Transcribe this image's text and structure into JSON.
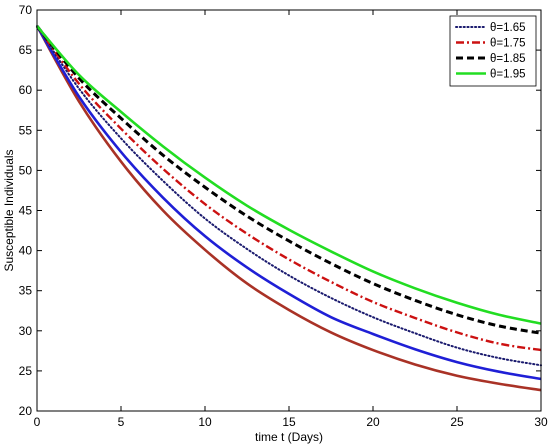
{
  "chart_data": {
    "type": "line",
    "title": "",
    "xlabel": "time t (Days)",
    "ylabel": "Susceptible Individuals",
    "xlim": [
      0,
      30
    ],
    "ylim": [
      20,
      70
    ],
    "xticks": [
      0,
      5,
      10,
      15,
      20,
      25,
      30
    ],
    "yticks": [
      20,
      25,
      30,
      35,
      40,
      45,
      50,
      55,
      60,
      65,
      70
    ],
    "grid": false,
    "legend_position": "top-right",
    "series": [
      {
        "name": "",
        "color": "#a93226",
        "style": "solid",
        "x": [
          0,
          2.5,
          5,
          7.5,
          10,
          12.5,
          15,
          17.5,
          20,
          22.5,
          25,
          27.5,
          30
        ],
        "y": [
          68,
          58.6,
          51.1,
          45.0,
          40.1,
          35.9,
          32.6,
          29.8,
          27.6,
          25.8,
          24.4,
          23.4,
          22.6
        ]
      },
      {
        "name": "",
        "color": "#1f1fd6",
        "style": "solid",
        "x": [
          0,
          2.5,
          5,
          7.5,
          10,
          12.5,
          15,
          17.5,
          20,
          22.5,
          25,
          27.5,
          30
        ],
        "y": [
          68,
          59.2,
          52.3,
          46.6,
          41.8,
          37.9,
          34.6,
          31.7,
          29.6,
          27.7,
          26.1,
          24.9,
          24.0
        ]
      },
      {
        "name": "θ=1.65",
        "color": "#1a1a6e",
        "style": "dotted",
        "x": [
          0,
          2.5,
          5,
          7.5,
          10,
          12.5,
          15,
          17.5,
          20,
          22.5,
          25,
          27.5,
          30
        ],
        "y": [
          68,
          60.2,
          54.0,
          48.7,
          44.0,
          40.2,
          36.9,
          34.1,
          31.7,
          29.7,
          27.9,
          26.6,
          25.7
        ]
      },
      {
        "name": "θ=1.75",
        "color": "#cc1111",
        "style": "dashdot",
        "x": [
          0,
          2.5,
          5,
          7.5,
          10,
          12.5,
          15,
          17.5,
          20,
          22.5,
          25,
          27.5,
          30
        ],
        "y": [
          68,
          60.8,
          55.2,
          50.2,
          45.8,
          42.1,
          38.9,
          36.1,
          33.6,
          31.6,
          29.8,
          28.4,
          27.6
        ]
      },
      {
        "name": "θ=1.85",
        "color": "#000000",
        "style": "dashed",
        "x": [
          0,
          2.5,
          5,
          7.5,
          10,
          12.5,
          15,
          17.5,
          20,
          22.5,
          25,
          27.5,
          30
        ],
        "y": [
          68,
          61.5,
          56.5,
          51.9,
          47.9,
          44.3,
          41.2,
          38.4,
          35.9,
          33.8,
          32.0,
          30.6,
          29.7
        ]
      },
      {
        "name": "θ=1.95",
        "color": "#22dd22",
        "style": "solid",
        "x": [
          0,
          2.5,
          5,
          7.5,
          10,
          12.5,
          15,
          17.5,
          20,
          22.5,
          25,
          27.5,
          30
        ],
        "y": [
          68,
          61.9,
          57.3,
          53.0,
          49.1,
          45.6,
          42.6,
          39.9,
          37.4,
          35.3,
          33.5,
          32.0,
          30.9
        ]
      }
    ]
  }
}
